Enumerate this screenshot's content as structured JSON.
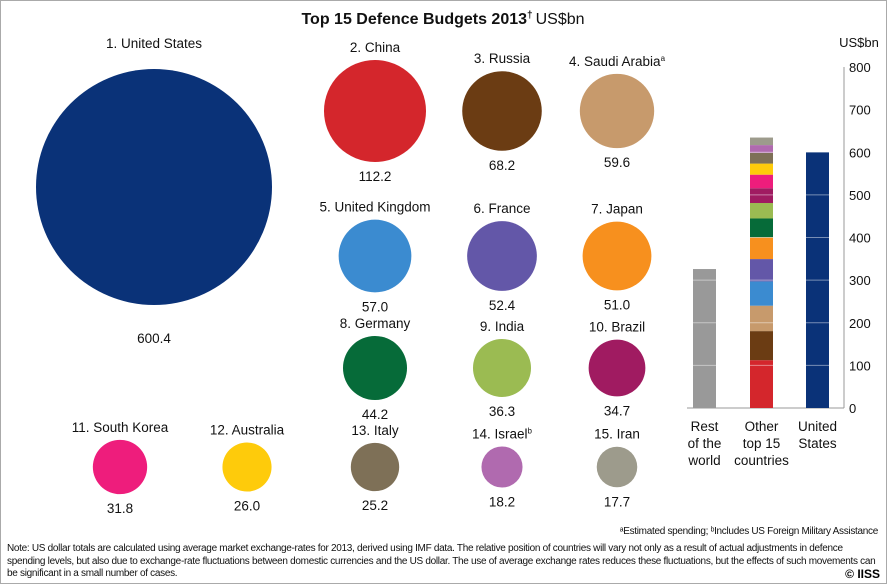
{
  "chart_data": {
    "type": "bubble-and-stacked-bar",
    "title": "Top 15 Defence Budgets 2013",
    "title_mark": "†",
    "title_unit": "US$bn",
    "bubbles": [
      {
        "rank": 1,
        "name": "United States",
        "sup": "",
        "value": 600.4,
        "value_label": "600.4",
        "color": "#0a3278"
      },
      {
        "rank": 2,
        "name": "China",
        "sup": "",
        "value": 112.2,
        "value_label": "112.2",
        "color": "#d4262c"
      },
      {
        "rank": 3,
        "name": "Russia",
        "sup": "",
        "value": 68.2,
        "value_label": "68.2",
        "color": "#6b3c13"
      },
      {
        "rank": 4,
        "name": "Saudi Arabia",
        "sup": "a",
        "value": 59.6,
        "value_label": "59.6",
        "color": "#c79a6c"
      },
      {
        "rank": 5,
        "name": "United Kingdom",
        "sup": "",
        "value": 57.0,
        "value_label": "57.0",
        "color": "#3b8bd0"
      },
      {
        "rank": 6,
        "name": "France",
        "sup": "",
        "value": 52.4,
        "value_label": "52.4",
        "color": "#6357a8"
      },
      {
        "rank": 7,
        "name": "Japan",
        "sup": "",
        "value": 51.0,
        "value_label": "51.0",
        "color": "#f7901e"
      },
      {
        "rank": 8,
        "name": "Germany",
        "sup": "",
        "value": 44.2,
        "value_label": "44.2",
        "color": "#066b39"
      },
      {
        "rank": 9,
        "name": "India",
        "sup": "",
        "value": 36.3,
        "value_label": "36.3",
        "color": "#9bbb52"
      },
      {
        "rank": 10,
        "name": "Brazil",
        "sup": "",
        "value": 34.7,
        "value_label": "34.7",
        "color": "#a01b61"
      },
      {
        "rank": 11,
        "name": "South Korea",
        "sup": "",
        "value": 31.8,
        "value_label": "31.8",
        "color": "#ee1d7c"
      },
      {
        "rank": 12,
        "name": "Australia",
        "sup": "",
        "value": 26.0,
        "value_label": "26.0",
        "color": "#fecb0b"
      },
      {
        "rank": 13,
        "name": "Italy",
        "sup": "",
        "value": 25.2,
        "value_label": "25.2",
        "color": "#7e7057"
      },
      {
        "rank": 14,
        "name": "Israel",
        "sup": "b",
        "value": 18.2,
        "value_label": "18.2",
        "color": "#b06aaf"
      },
      {
        "rank": 15,
        "name": "Iran",
        "sup": "",
        "value": 17.7,
        "value_label": "17.7",
        "color": "#9d9b8c"
      }
    ],
    "bar": {
      "ylabel": "US$bn",
      "ylim": [
        0,
        800
      ],
      "yticks": [
        0,
        100,
        200,
        300,
        400,
        500,
        600,
        700,
        800
      ],
      "categories": [
        "Rest of the world",
        "Other top 15 countries",
        "United States"
      ],
      "category_lines": [
        [
          "Rest",
          "of the",
          "world"
        ],
        [
          "Other",
          "top 15",
          "countries"
        ],
        [
          "United",
          "States"
        ]
      ],
      "rest_of_world": {
        "value": 326,
        "color": "#999999"
      },
      "other_top15_stack": "ranks 2-15 stacked bottom to top",
      "united_states": {
        "value": 600.4,
        "color": "#0a3278"
      },
      "gridlines_on_bars": true
    }
  },
  "footnote": "ᵃEstimated spending; ᵇIncludes US Foreign Military Assistance",
  "note": "Note: US dollar totals are calculated using average market exchange-rates for 2013, derived using IMF data. The relative position of countries will vary not only as a result of actual adjustments in defence spending levels, but also due to exchange-rate fluctuations between domestic currencies and the US dollar. The use of average exchange rates reduces these fluctuations, but the effects of such movements can be significant in a small number of cases.",
  "copyright": "© IISS"
}
